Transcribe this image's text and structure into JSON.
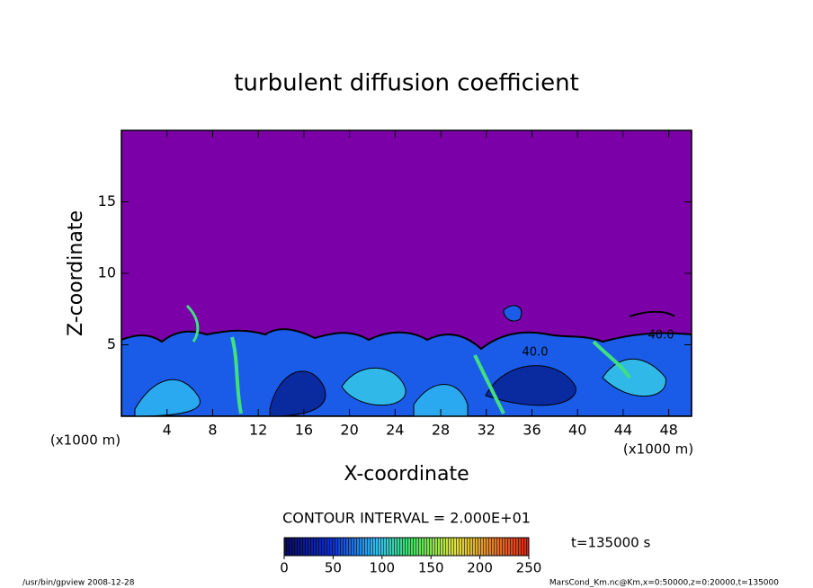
{
  "chart_data": {
    "type": "contour",
    "title": "turbulent diffusion coefficient",
    "x_label": "X-coordinate",
    "y_label": "Z-coordinate",
    "x_unit_labels": [
      "(x1000 m)",
      "(x1000 m)"
    ],
    "xlim": [
      0,
      50
    ],
    "xticks": [
      4,
      8,
      12,
      16,
      20,
      24,
      28,
      32,
      36,
      40,
      44,
      48
    ],
    "ylim": [
      0,
      20
    ],
    "yticks": [
      5,
      10,
      15
    ],
    "contour_labels": [
      "40.0",
      "40.0"
    ],
    "contour_interval_text": "CONTOUR INTERVAL = 2.000E+01",
    "colorbar": {
      "lim": [
        0,
        250
      ],
      "ticks": [
        0,
        50,
        100,
        150,
        200,
        250
      ]
    },
    "time_label": "t=135000 s",
    "footer_left": "/usr/bin/gpview   2008-12-28",
    "footer_right": "MarsCond_Km.nc@Km,x=0:50000,z=0:20000,t=135000"
  }
}
